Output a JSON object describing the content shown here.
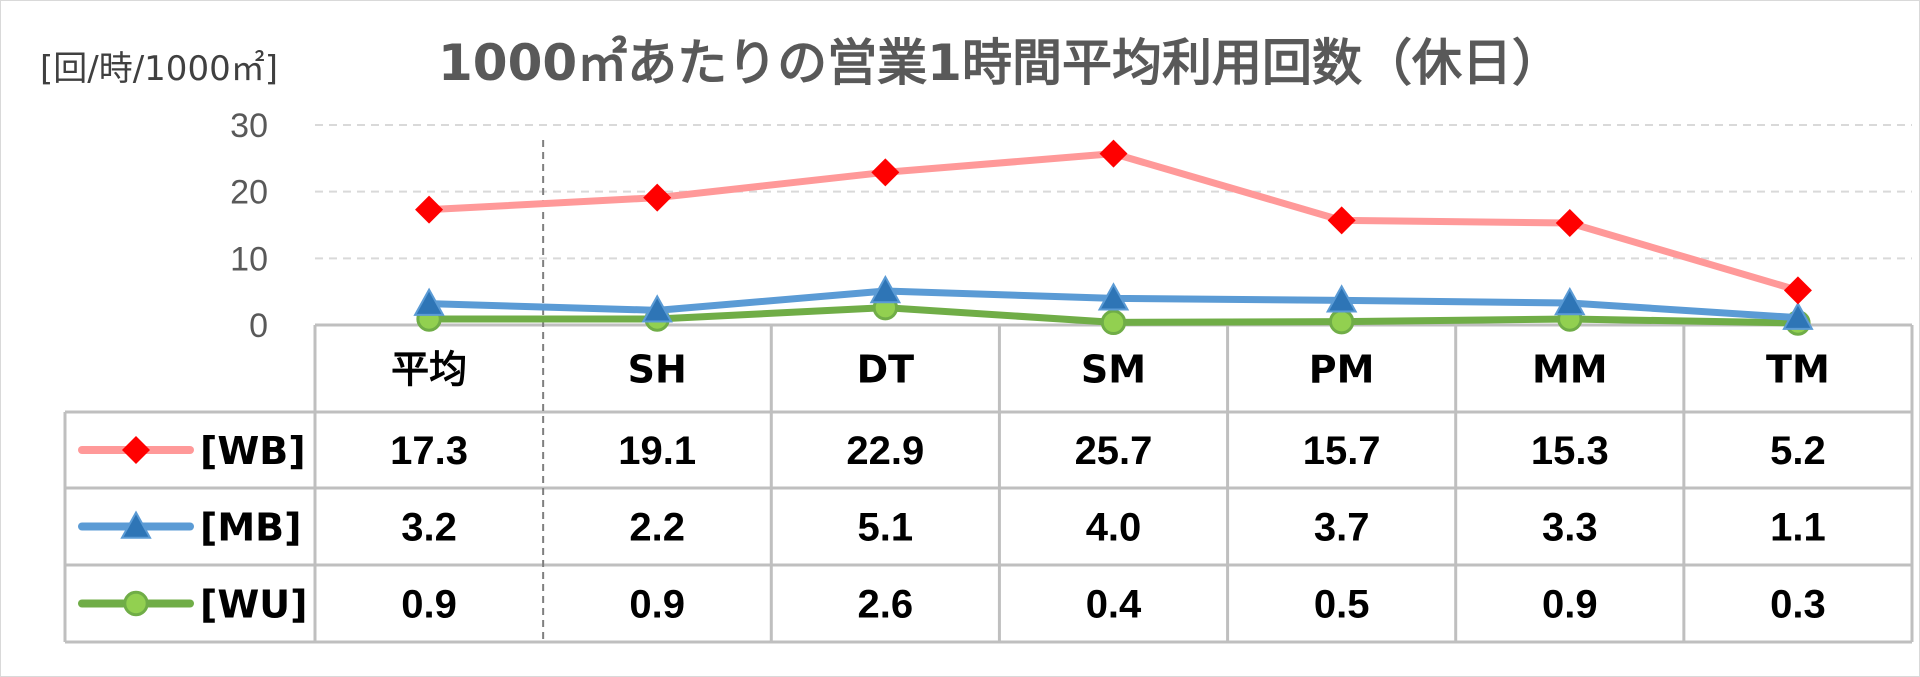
{
  "chart_data": {
    "type": "line",
    "title": "1000㎡あたりの営業1時間平均利用回数（休日）",
    "ylabel": "[回/時/1000㎡]",
    "ylim": [
      0,
      30
    ],
    "yticks": [
      0,
      10,
      20,
      30
    ],
    "grid": true,
    "categories": [
      "平均",
      "SH",
      "DT",
      "SM",
      "PM",
      "MM",
      "TM"
    ],
    "series": [
      {
        "name": "[WB]",
        "values": [
          17.3,
          19.1,
          22.9,
          25.7,
          15.7,
          15.3,
          5.2
        ],
        "labels": [
          "17.3",
          "19.1",
          "22.9",
          "25.7",
          "15.7",
          "15.3",
          "5.2"
        ],
        "color": "#FF9999",
        "marker": "diamond",
        "marker_color": "#FF0000"
      },
      {
        "name": "[MB]",
        "values": [
          3.2,
          2.2,
          5.1,
          4.0,
          3.7,
          3.3,
          1.1
        ],
        "labels": [
          "3.2",
          "2.2",
          "5.1",
          "4.0",
          "3.7",
          "3.3",
          "1.1"
        ],
        "color": "#5B9BD5",
        "marker": "triangle",
        "marker_color": "#2E75B6"
      },
      {
        "name": "[WU]",
        "values": [
          0.9,
          0.9,
          2.6,
          0.4,
          0.5,
          0.9,
          0.3
        ],
        "labels": [
          "0.9",
          "0.9",
          "2.6",
          "0.4",
          "0.5",
          "0.9",
          "0.3"
        ],
        "color": "#70AD47",
        "marker": "circle",
        "marker_color": "#92D050"
      }
    ],
    "data_table": true
  }
}
